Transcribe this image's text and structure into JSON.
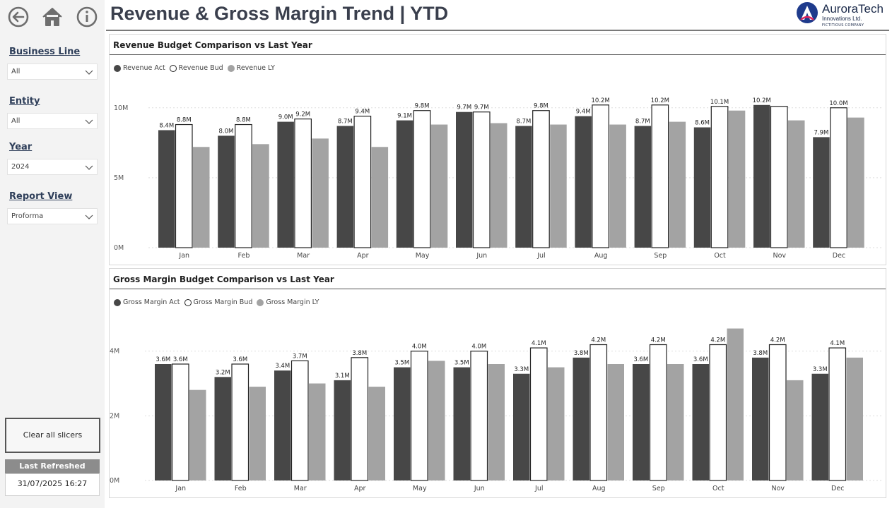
{
  "header": {
    "title": "Revenue & Gross Margin Trend | YTD"
  },
  "nav": {
    "back_icon": "back-arrow-icon",
    "home_icon": "home-icon",
    "info_icon": "info-icon"
  },
  "logo": {
    "name": "AuroraTech",
    "sub": "Innovations Ltd.",
    "tag": "FICTITIOUS COMPANY"
  },
  "slicers": [
    {
      "label": "Business Line",
      "value": "All"
    },
    {
      "label": "Entity",
      "value": "All"
    },
    {
      "label": "Year",
      "value": "2024"
    },
    {
      "label": "Report View",
      "value": "Proforma"
    }
  ],
  "buttons": {
    "clear_label": "Clear all slicers"
  },
  "refresh": {
    "label": "Last Refreshed",
    "value": "31/07/2025 16:27"
  },
  "colors": {
    "act": "#474747",
    "bud": "#ffffff",
    "ly": "#a3a3a3",
    "accent": "#2f3f5a"
  },
  "chart_data": [
    {
      "type": "bar",
      "title": "Revenue Budget Comparison vs Last Year",
      "categories": [
        "Jan",
        "Feb",
        "Mar",
        "Apr",
        "May",
        "Jun",
        "Jul",
        "Aug",
        "Sep",
        "Oct",
        "Nov",
        "Dec"
      ],
      "series": [
        {
          "name": "Revenue Act",
          "values": [
            8.4,
            8.0,
            9.0,
            8.7,
            9.1,
            9.7,
            8.7,
            9.4,
            8.7,
            8.6,
            10.2,
            7.9
          ],
          "labels": [
            "8.4M",
            "8.0M",
            "9.0M",
            "8.7M",
            "9.1M",
            "9.7M",
            "8.7M",
            "9.4M",
            "8.7M",
            "8.6M",
            "10.2M",
            "7.9M"
          ]
        },
        {
          "name": "Revenue Bud",
          "values": [
            8.8,
            8.8,
            9.2,
            9.4,
            9.8,
            9.7,
            9.8,
            10.2,
            10.2,
            10.1,
            10.1,
            10.0
          ],
          "labels": [
            "8.8M",
            "8.8M",
            "9.2M",
            "9.4M",
            "9.8M",
            "9.7M",
            "9.8M",
            "10.2M",
            "10.2M",
            "10.1M",
            "",
            "10.0M"
          ]
        },
        {
          "name": "Revenue LY",
          "values": [
            7.2,
            7.4,
            7.8,
            7.2,
            8.8,
            8.9,
            8.8,
            8.8,
            9.0,
            9.8,
            9.1,
            9.3
          ]
        }
      ],
      "yticks": [
        {
          "v": 0,
          "label": "0M"
        },
        {
          "v": 5,
          "label": "5M"
        },
        {
          "v": 10,
          "label": "10M"
        }
      ],
      "ylim": [
        0,
        11.4
      ],
      "legend": "top-left"
    },
    {
      "type": "bar",
      "title": "Gross Margin Budget Comparison vs Last Year",
      "categories": [
        "Jan",
        "Feb",
        "Mar",
        "Apr",
        "May",
        "Jun",
        "Jul",
        "Aug",
        "Sep",
        "Oct",
        "Nov",
        "Dec"
      ],
      "series": [
        {
          "name": "Gross Margin Act",
          "values": [
            3.6,
            3.2,
            3.4,
            3.1,
            3.5,
            3.5,
            3.3,
            3.8,
            3.6,
            3.6,
            3.8,
            3.3
          ],
          "labels": [
            "3.6M",
            "3.2M",
            "3.4M",
            "3.1M",
            "3.5M",
            "3.5M",
            "3.3M",
            "3.8M",
            "3.6M",
            "3.6M",
            "3.8M",
            "3.3M"
          ]
        },
        {
          "name": "Gross Margin Bud",
          "values": [
            3.6,
            3.6,
            3.7,
            3.8,
            4.0,
            4.0,
            4.1,
            4.2,
            4.2,
            4.2,
            4.2,
            4.1
          ],
          "labels": [
            "3.6M",
            "3.6M",
            "3.7M",
            "3.8M",
            "4.0M",
            "4.0M",
            "4.1M",
            "4.2M",
            "4.2M",
            "4.2M",
            "4.2M",
            "4.1M"
          ]
        },
        {
          "name": "Gross Margin LY",
          "values": [
            2.8,
            2.9,
            3.0,
            2.9,
            3.7,
            3.6,
            3.5,
            3.6,
            3.6,
            4.7,
            3.1,
            3.8
          ]
        }
      ],
      "yticks": [
        {
          "v": 0,
          "label": "0M"
        },
        {
          "v": 2,
          "label": "2M"
        },
        {
          "v": 4,
          "label": "4M"
        }
      ],
      "ylim": [
        0,
        4.8
      ],
      "legend": "top-left"
    }
  ]
}
